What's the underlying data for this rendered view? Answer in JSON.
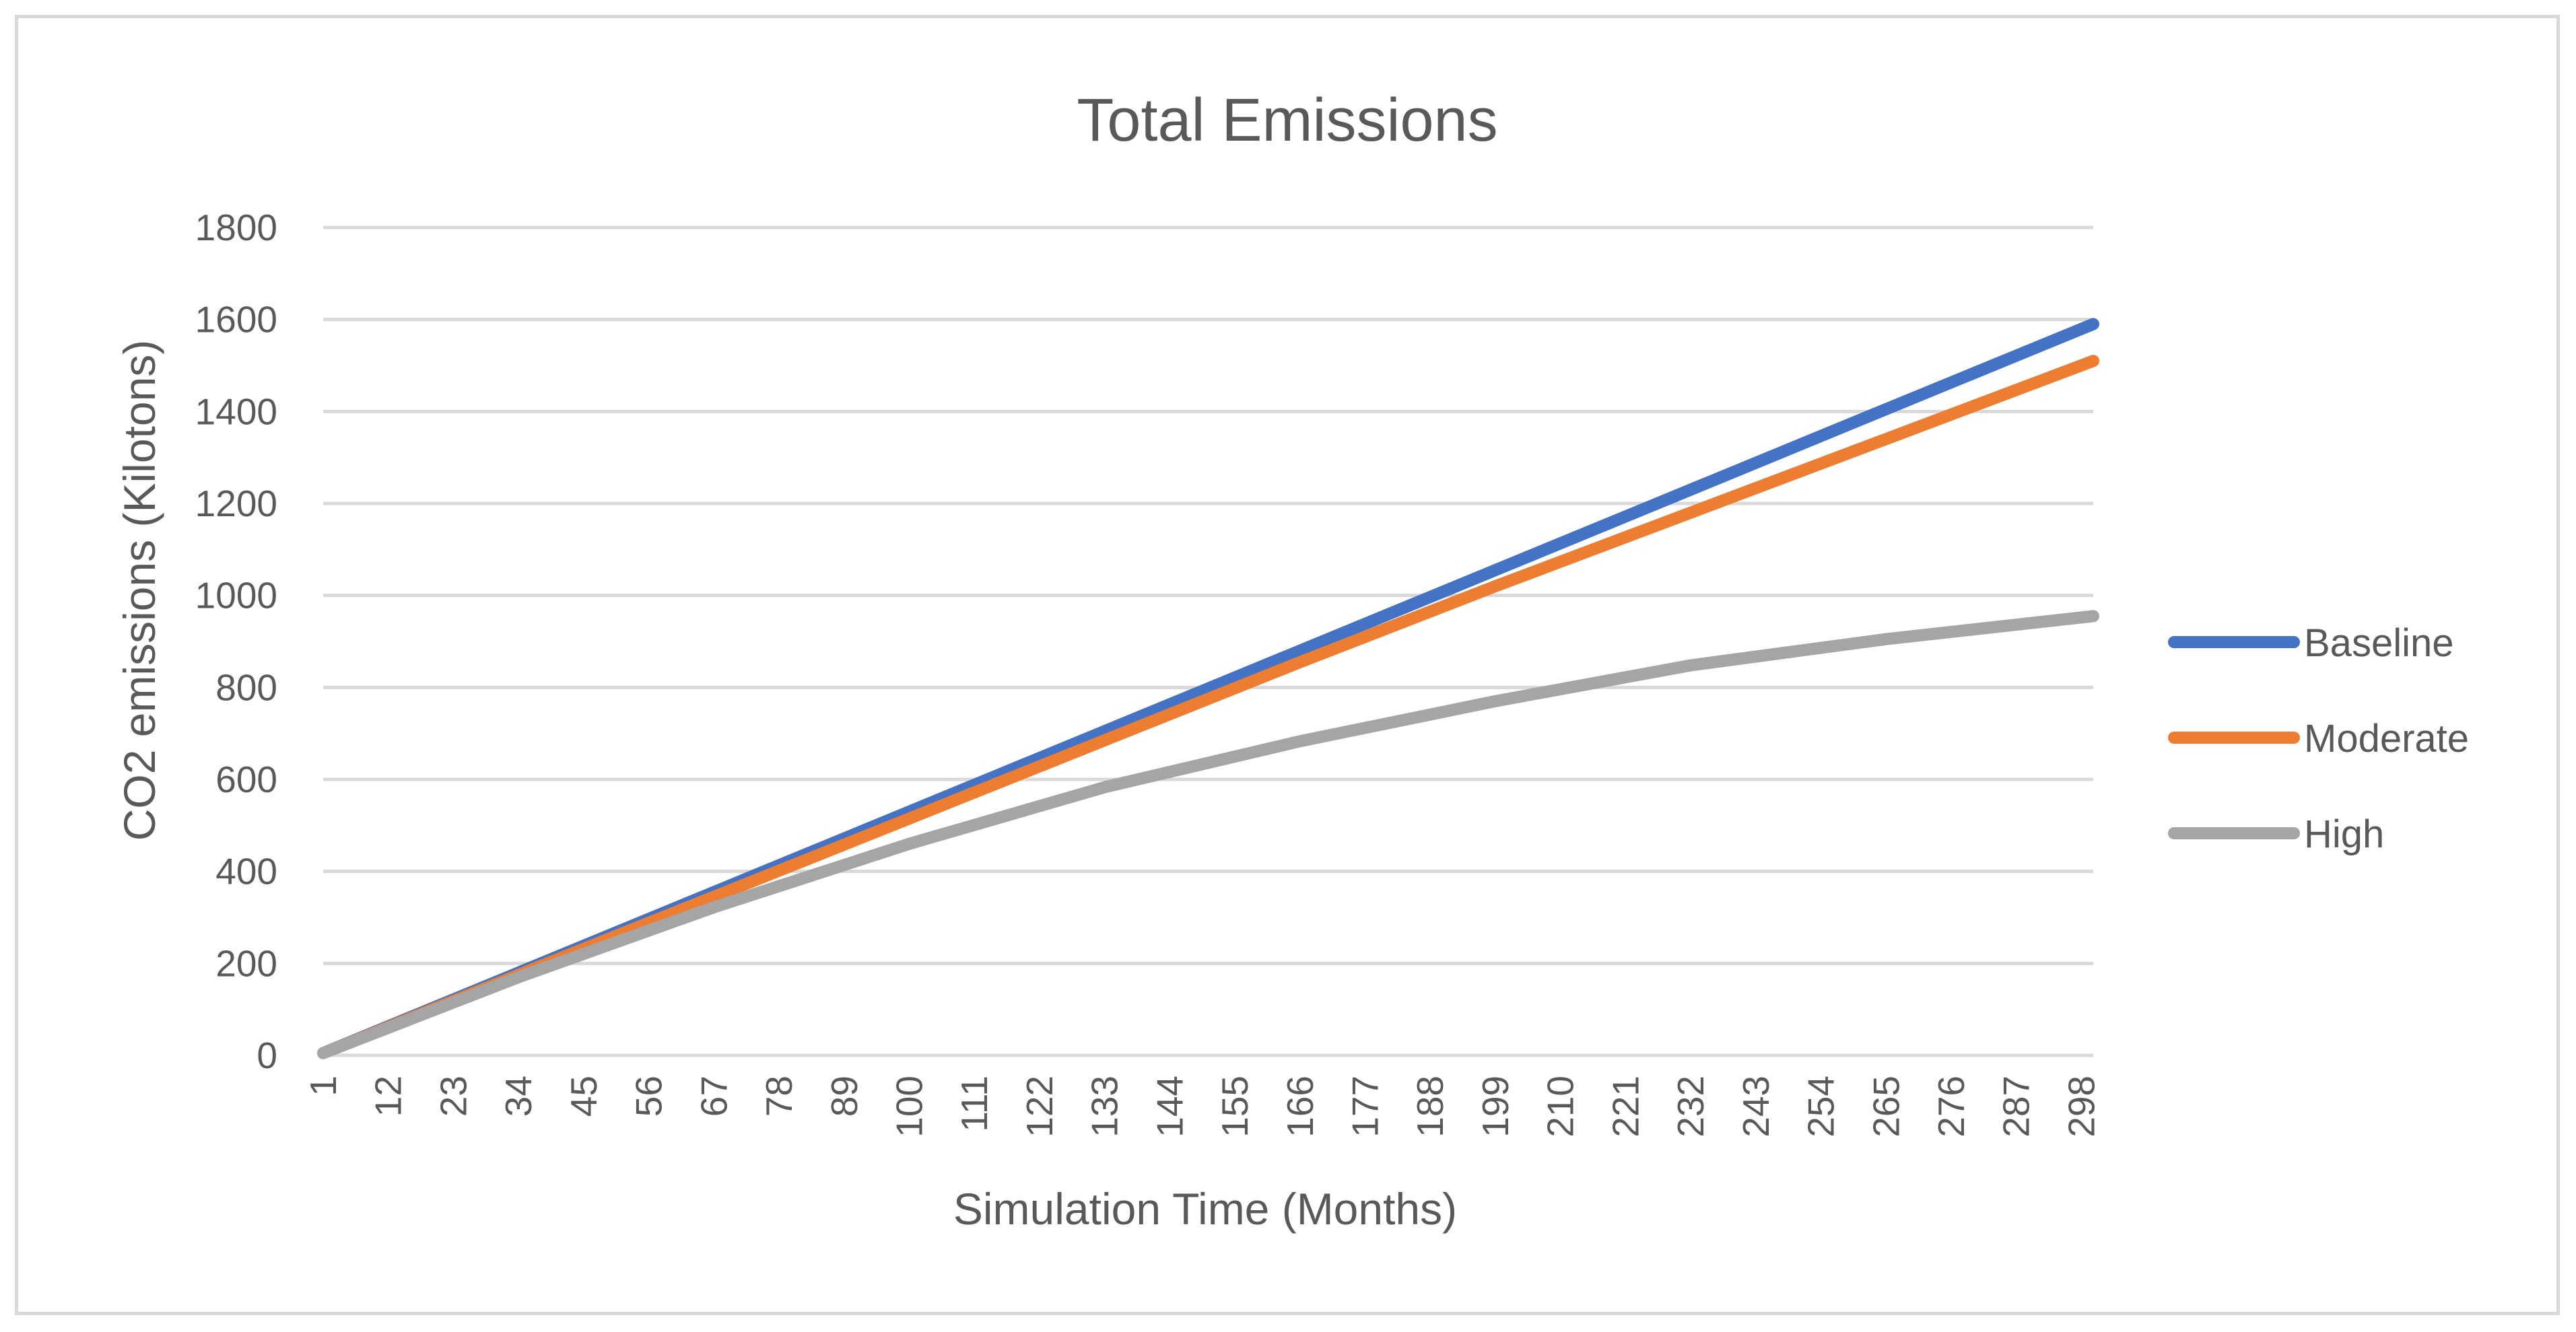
{
  "chart_data": {
    "type": "line",
    "title": "Total Emissions",
    "xlabel": "Simulation Time (Months)",
    "ylabel": "CO2 emissions (Kilotons)",
    "ylim": [
      0,
      1800
    ],
    "yticks": [
      "0",
      "200",
      "400",
      "600",
      "800",
      "1000",
      "1200",
      "1400",
      "1600",
      "1800"
    ],
    "xticks": [
      "1",
      "12",
      "23",
      "34",
      "45",
      "56",
      "67",
      "78",
      "89",
      "100",
      "111",
      "122",
      "133",
      "144",
      "155",
      "166",
      "177",
      "188",
      "199",
      "210",
      "221",
      "232",
      "243",
      "254",
      "265",
      "276",
      "287",
      "298"
    ],
    "x_range": [
      1,
      300
    ],
    "grid": true,
    "legend_position": "right",
    "series": [
      {
        "name": "Baseline",
        "color": "#4472c4",
        "x": [
          1,
          34,
          67,
          100,
          133,
          166,
          199,
          232,
          265,
          300
        ],
        "values": [
          5,
          180,
          355,
          530,
          705,
          880,
          1055,
          1230,
          1405,
          1590
        ]
      },
      {
        "name": "Moderate",
        "color": "#ed7d31",
        "x": [
          1,
          34,
          67,
          100,
          133,
          166,
          199,
          232,
          265,
          300
        ],
        "values": [
          5,
          175,
          345,
          515,
          685,
          855,
          1020,
          1180,
          1340,
          1510
        ]
      },
      {
        "name": "High",
        "color": "#a5a5a5",
        "x": [
          1,
          34,
          67,
          100,
          133,
          166,
          199,
          232,
          265,
          300
        ],
        "values": [
          5,
          170,
          322,
          460,
          583,
          683,
          770,
          848,
          905,
          955
        ]
      }
    ]
  }
}
